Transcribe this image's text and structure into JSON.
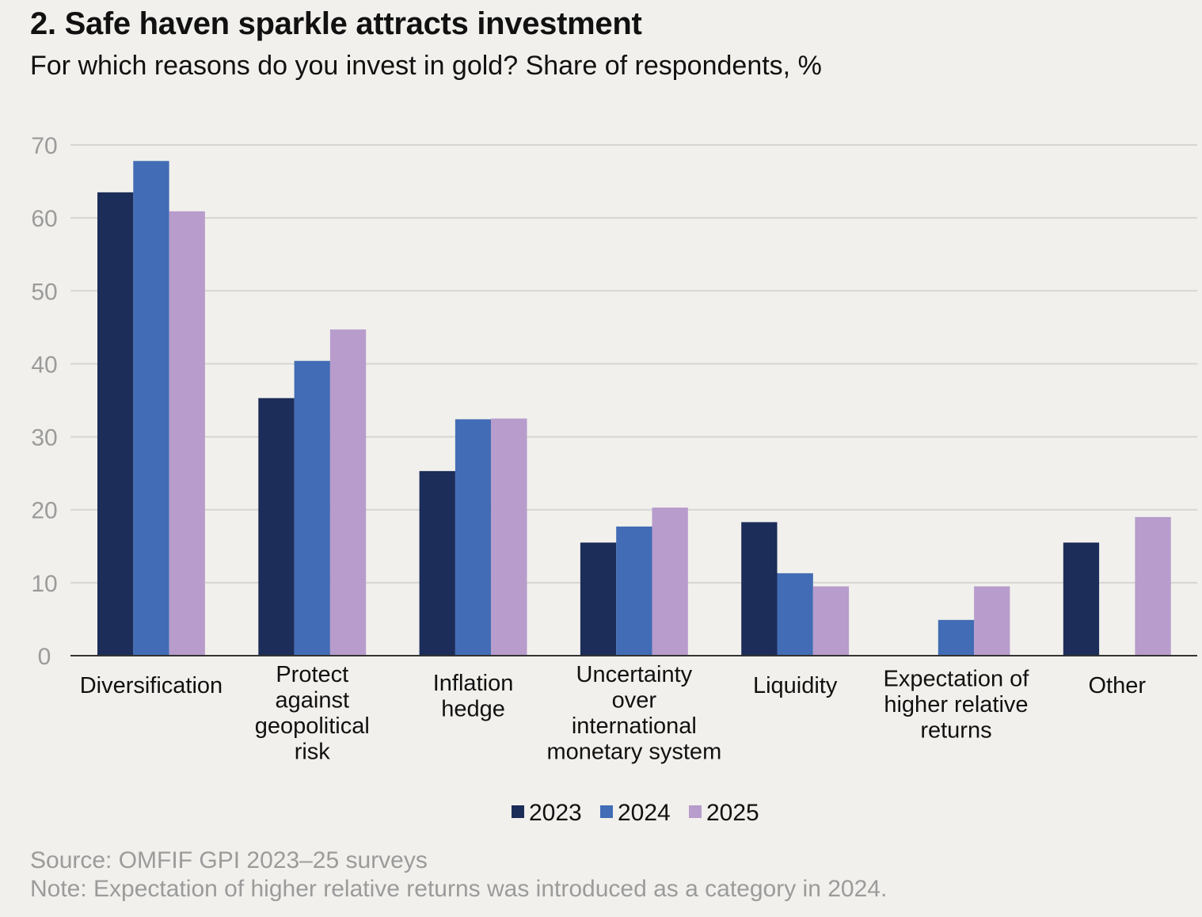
{
  "title": "2. Safe haven sparkle attracts investment",
  "subtitle": "For which reasons do you invest in gold? Share of respondents, %",
  "source": "Source: OMFIF GPI 2023–25 surveys",
  "note": "Note: Expectation of higher relative returns was introduced as a category in 2024.",
  "chart_data": {
    "type": "bar",
    "categories": [
      [
        "Diversification"
      ],
      [
        "Protect",
        "against",
        "geopolitical",
        "risk"
      ],
      [
        "Inflation",
        "hedge"
      ],
      [
        "Uncertainty",
        "over",
        "international",
        "monetary system"
      ],
      [
        "Liquidity"
      ],
      [
        "Expectation of",
        "higher relative",
        "returns"
      ],
      [
        "Other"
      ]
    ],
    "series": [
      {
        "name": "2023",
        "color": "#1c2d59",
        "values": [
          63.5,
          35.3,
          25.3,
          15.5,
          18.3,
          null,
          15.5
        ]
      },
      {
        "name": "2024",
        "color": "#426cb5",
        "values": [
          67.8,
          40.4,
          32.4,
          17.7,
          11.3,
          4.9,
          null
        ]
      },
      {
        "name": "2025",
        "color": "#b89ccc",
        "values": [
          60.9,
          44.7,
          32.5,
          20.3,
          9.5,
          9.5,
          19.0
        ]
      }
    ],
    "yticks": [
      0,
      10,
      20,
      30,
      40,
      50,
      60,
      70
    ],
    "ylim": [
      0,
      70
    ],
    "grid": true,
    "legend": "bottom-center"
  }
}
